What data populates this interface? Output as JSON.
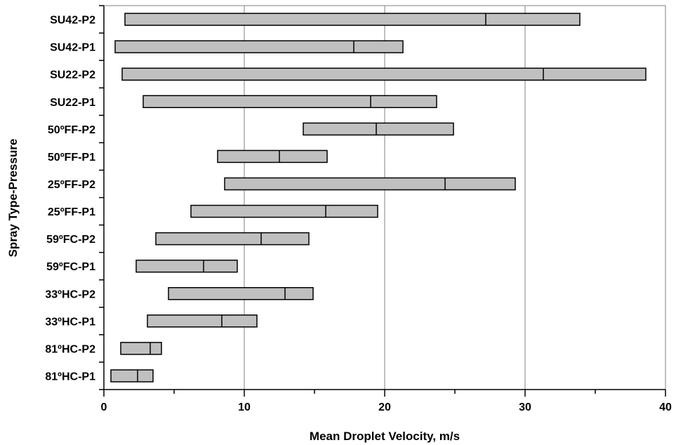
{
  "chart_data": {
    "type": "bar",
    "orientation": "horizontal",
    "title": "",
    "xlabel": "Mean Droplet Velocity, m/s",
    "ylabel": "Spray Type-Pressure",
    "xlim": [
      0,
      40
    ],
    "xticks": [
      0,
      10,
      20,
      30,
      40
    ],
    "grid": "vertical",
    "bar_color": "#c0c0c0",
    "categories": [
      "81ºHC-P1",
      "81ºHC-P2",
      "33ºHC-P1",
      "33ºHC-P2",
      "59ºFC-P1",
      "59ºFC-P2",
      "25ºFF-P1",
      "25ºFF-P2",
      "50ºFF-P1",
      "50ºFF-P2",
      "SU22-P1",
      "SU22-P2",
      "SU42-P1",
      "SU42-P2"
    ],
    "ranges": [
      {
        "min": 0.5,
        "mean": 2.4,
        "max": 3.5
      },
      {
        "min": 1.2,
        "mean": 3.3,
        "max": 4.1
      },
      {
        "min": 3.1,
        "mean": 8.4,
        "max": 10.9
      },
      {
        "min": 4.6,
        "mean": 12.9,
        "max": 14.9
      },
      {
        "min": 2.3,
        "mean": 7.1,
        "max": 9.5
      },
      {
        "min": 3.7,
        "mean": 11.2,
        "max": 14.6
      },
      {
        "min": 6.2,
        "mean": 15.8,
        "max": 19.5
      },
      {
        "min": 8.6,
        "mean": 24.3,
        "max": 29.3
      },
      {
        "min": 8.1,
        "mean": 12.5,
        "max": 15.9
      },
      {
        "min": 14.2,
        "mean": 19.4,
        "max": 24.9
      },
      {
        "min": 2.8,
        "mean": 19.0,
        "max": 23.7
      },
      {
        "min": 1.3,
        "mean": 31.3,
        "max": 38.6
      },
      {
        "min": 0.8,
        "mean": 17.8,
        "max": 21.3
      },
      {
        "min": 1.5,
        "mean": 27.2,
        "max": 33.9
      }
    ]
  }
}
